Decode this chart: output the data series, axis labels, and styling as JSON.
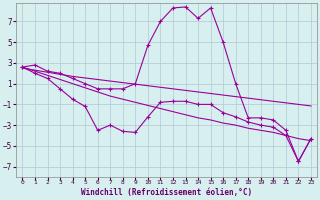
{
  "x": [
    0,
    1,
    2,
    3,
    4,
    5,
    6,
    7,
    8,
    9,
    10,
    11,
    12,
    13,
    14,
    15,
    16,
    17,
    18,
    19,
    20,
    21,
    22,
    23
  ],
  "line_upper": [
    2.6,
    2.8,
    2.2,
    2.0,
    1.5,
    1.0,
    0.5,
    0.5,
    0.5,
    1.0,
    4.7,
    7.0,
    8.3,
    8.4,
    7.3,
    8.3,
    5.0,
    1.0,
    -2.3,
    -2.3,
    -2.5,
    -3.5,
    -6.5,
    -4.3
  ],
  "line_lower": [
    2.6,
    2.0,
    1.5,
    0.5,
    -0.5,
    -1.2,
    -3.5,
    -3.0,
    -3.6,
    -3.7,
    -2.2,
    -0.8,
    -0.7,
    -0.7,
    -1.0,
    -1.0,
    -1.8,
    -2.2,
    -2.7,
    -3.0,
    -3.2,
    -4.0,
    -6.5,
    -4.3
  ],
  "line_trend1": [
    2.5,
    2.3,
    2.1,
    1.9,
    1.7,
    1.55,
    1.4,
    1.25,
    1.1,
    0.95,
    0.8,
    0.65,
    0.5,
    0.35,
    0.2,
    0.05,
    -0.1,
    -0.25,
    -0.4,
    -0.55,
    -0.7,
    -0.85,
    -1.0,
    -1.15
  ],
  "line_trend2": [
    2.6,
    2.2,
    1.8,
    1.4,
    1.0,
    0.6,
    0.2,
    -0.2,
    -0.5,
    -0.8,
    -1.1,
    -1.4,
    -1.7,
    -2.0,
    -2.3,
    -2.5,
    -2.8,
    -3.0,
    -3.3,
    -3.5,
    -3.7,
    -4.0,
    -4.3,
    -4.5
  ],
  "color": "#990099",
  "bg_color": "#d8efef",
  "grid_color": "#b0c8d8",
  "xlabel": "Windchill (Refroidissement éolien,°C)",
  "ylim": [
    -8,
    8.8
  ],
  "xlim": [
    -0.5,
    23.5
  ],
  "yticks": [
    -7,
    -5,
    -3,
    -1,
    1,
    3,
    5,
    7
  ],
  "xticks": [
    0,
    1,
    2,
    3,
    4,
    5,
    6,
    7,
    8,
    9,
    10,
    11,
    12,
    13,
    14,
    15,
    16,
    17,
    18,
    19,
    20,
    21,
    22,
    23
  ]
}
